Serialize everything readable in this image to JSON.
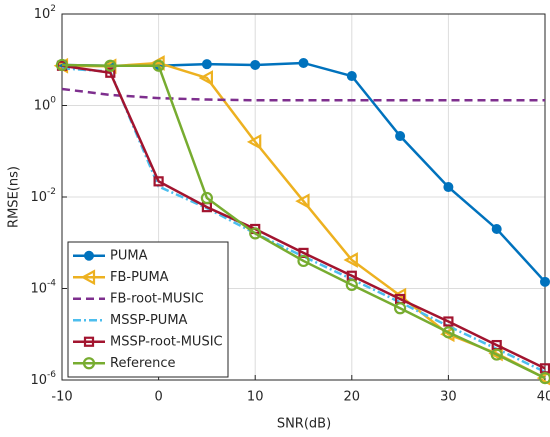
{
  "chart_data": {
    "type": "line",
    "xlabel": "SNR(dB)",
    "ylabel": "RMSE(ns)",
    "x": [
      -10,
      -5,
      0,
      5,
      10,
      15,
      20,
      25,
      30,
      35,
      40
    ],
    "xlim": [
      -10,
      40
    ],
    "xticks": [
      -10,
      0,
      10,
      20,
      30,
      40
    ],
    "ylim": [
      1e-06,
      100
    ],
    "yscale": "log",
    "yticks": [
      {
        "value": 1e-06,
        "label": "10^-6"
      },
      {
        "value": 0.0001,
        "label": "10^-4"
      },
      {
        "value": 0.01,
        "label": "10^-2"
      },
      {
        "value": 1,
        "label": "10^0"
      },
      {
        "value": 100,
        "label": "10^2"
      }
    ],
    "grid": true,
    "legend": "lower left",
    "series": [
      {
        "name": "PUMA",
        "color": "#0072bd",
        "marker": "filled-circle",
        "dash": "solid",
        "values": [
          7.7,
          7.4,
          7.4,
          8,
          7.7,
          8.5,
          4.4,
          0.215,
          0.0165,
          0.002,
          0.00014
        ]
      },
      {
        "name": "FB-PUMA",
        "color": "#edb120",
        "marker": "left-triangle",
        "dash": "solid",
        "values": [
          7.4,
          7.2,
          8.5,
          4,
          0.16,
          0.0081,
          0.00042,
          7e-05,
          1e-05,
          3.8e-06,
          1.1e-06
        ]
      },
      {
        "name": "FB-root-MUSIC",
        "color": "#7e2f8e",
        "marker": "none",
        "dash": "dashed",
        "values": [
          2.3,
          1.7,
          1.45,
          1.35,
          1.3,
          1.3,
          1.3,
          1.3,
          1.3,
          1.3,
          1.3
        ]
      },
      {
        "name": "MSSP-PUMA",
        "color": "#4dbeee",
        "marker": "none",
        "dash": "dashdot",
        "values": [
          6.5,
          5.5,
          0.017,
          0.0057,
          0.0016,
          0.0005,
          0.00016,
          5e-05,
          1.5e-05,
          4.8e-06,
          1.5e-06
        ]
      },
      {
        "name": "MSSP-root-MUSIC",
        "color": "#a2142f",
        "marker": "square",
        "dash": "solid",
        "values": [
          7.4,
          5.2,
          0.022,
          0.006,
          0.002,
          0.0006,
          0.00019,
          5.9e-05,
          1.9e-05,
          5.8e-06,
          1.8e-06
        ]
      },
      {
        "name": "Reference",
        "color": "#77ac30",
        "marker": "open-circle",
        "dash": "solid",
        "values": [
          7.7,
          7.4,
          7.4,
          0.0095,
          0.0016,
          0.0004,
          0.00012,
          3.7e-05,
          1.1e-05,
          3.6e-06,
          1.1e-06
        ]
      }
    ]
  }
}
